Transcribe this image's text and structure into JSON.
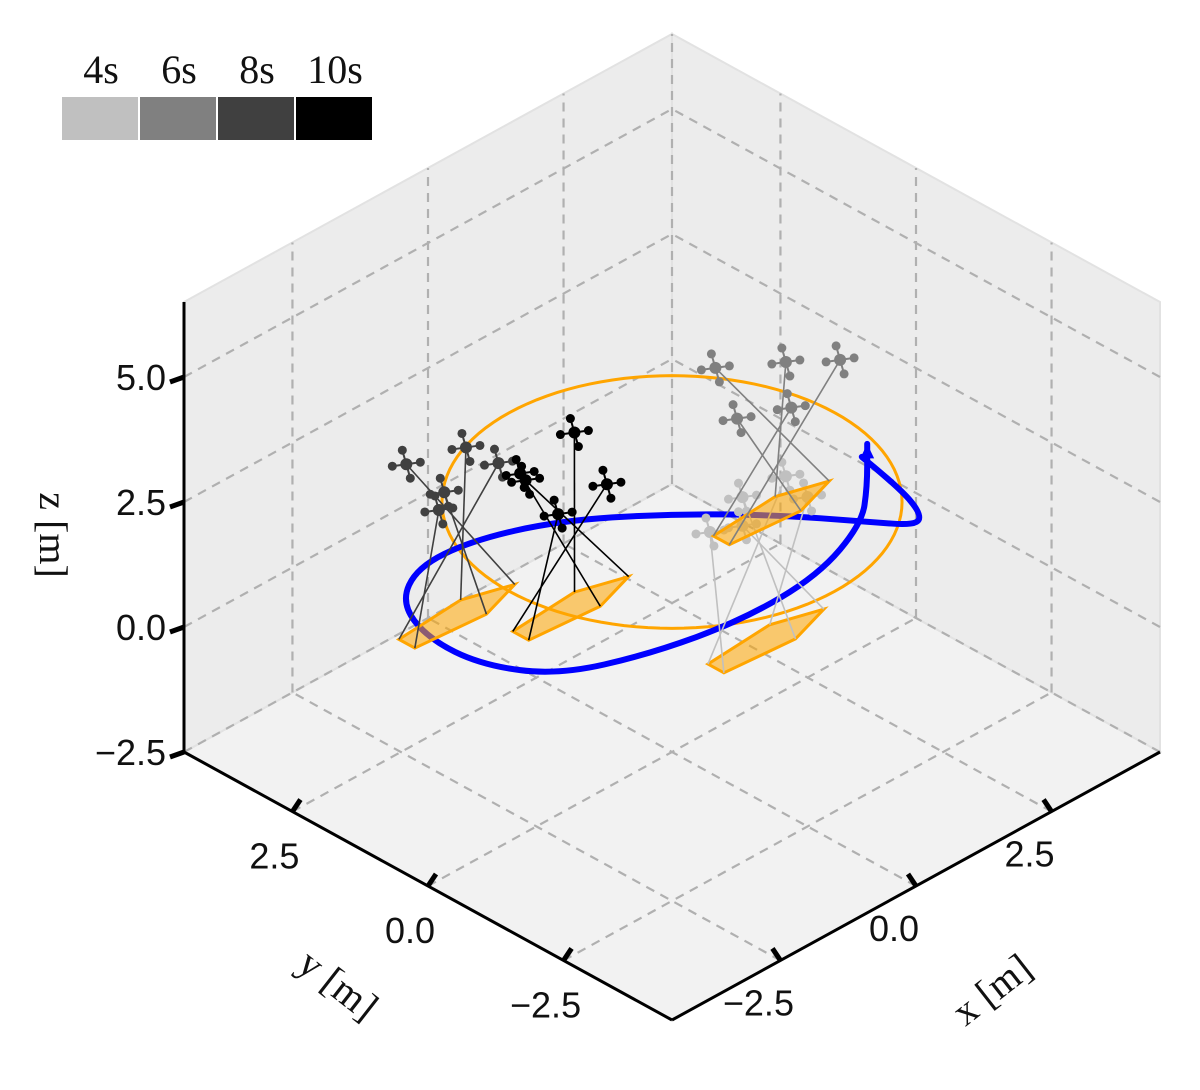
{
  "chart_data": {
    "type": "3d-trajectory",
    "xlabel": "x [m]",
    "ylabel": "y [m]",
    "zlabel": "z [m]",
    "xlim": [
      -4.5,
      4.5
    ],
    "ylim": [
      -4.5,
      4.5
    ],
    "zlim": [
      -2.5,
      6.5
    ],
    "xticks": [
      "−2.5",
      "0.0",
      "2.5"
    ],
    "yticks": [
      "2.5",
      "0.0",
      "−2.5"
    ],
    "zticks": [
      "−2.5",
      "0.0",
      "2.5",
      "5.0"
    ],
    "grid": true,
    "legend": {
      "placement": "top-left",
      "type": "colorbar",
      "entries": [
        {
          "label": "4s",
          "color": "#c0c0c0"
        },
        {
          "label": "6s",
          "color": "#808080"
        },
        {
          "label": "8s",
          "color": "#404040"
        },
        {
          "label": "10s",
          "color": "#000000"
        }
      ]
    },
    "series": [
      {
        "kind": "reference-circle",
        "color": "#ffa500",
        "center": [
          0,
          0,
          2.5
        ],
        "radius": 3
      },
      {
        "kind": "payload-trajectory",
        "color": "#0000ff",
        "points": [
          [
            1.5,
            -2.0,
            3.7
          ],
          [
            2.0,
            -2.2,
            2.9
          ],
          [
            2.6,
            -2.0,
            1.9
          ],
          [
            3.2,
            -1.3,
            0.9
          ],
          [
            3.4,
            -0.2,
            0.2
          ],
          [
            3.0,
            1.1,
            -0.2
          ],
          [
            2.1,
            2.2,
            -0.3
          ],
          [
            0.9,
            3.0,
            -0.2
          ],
          [
            -0.4,
            3.3,
            0.0
          ],
          [
            -1.6,
            3.1,
            0.3
          ],
          [
            -2.6,
            2.4,
            0.6
          ],
          [
            -3.2,
            1.3,
            0.9
          ],
          [
            -3.4,
            0.1,
            1.2
          ],
          [
            -3.2,
            -1.1,
            1.6
          ],
          [
            -2.5,
            -2.1,
            2.2
          ],
          [
            -1.5,
            -2.8,
            2.7
          ],
          [
            -0.3,
            -3.0,
            3.0
          ],
          [
            0.8,
            -2.7,
            3.2
          ],
          [
            1.3,
            -2.3,
            3.4
          ],
          [
            1.6,
            -2.0,
            3.9
          ]
        ]
      }
    ],
    "snapshots": [
      {
        "time": "4s",
        "center": [
          -1.5,
          -3.2,
          2.5
        ],
        "drones": [
          [
            -2.1,
            -3.4,
            5.3
          ],
          [
            -1.1,
            -3.6,
            5.4
          ],
          [
            -0.7,
            -2.8,
            5.1
          ],
          [
            -2.0,
            -2.7,
            4.7
          ],
          [
            -1.2,
            -2.5,
            4.8
          ]
        ]
      },
      {
        "time": "6s",
        "center": [
          2.8,
          1.0,
          0.0
        ],
        "drones": [
          [
            2.4,
            1.6,
            2.8
          ],
          [
            3.4,
            1.3,
            2.5
          ],
          [
            2.6,
            0.4,
            2.6
          ],
          [
            3.6,
            0.5,
            2.9
          ],
          [
            2.0,
            0.8,
            2.5
          ]
        ]
      },
      {
        "time": "8s",
        "center": [
          -1.5,
          2.5,
          -0.4
        ],
        "drones": [
          [
            -1.9,
            3.0,
            2.6
          ],
          [
            -0.9,
            2.9,
            2.4
          ],
          [
            -1.2,
            2.0,
            2.8
          ],
          [
            -2.2,
            2.1,
            2.4
          ],
          [
            -1.6,
            2.6,
            2.1
          ]
        ]
      },
      {
        "time": "10s",
        "center": [
          -2.5,
          -0.6,
          2.2
        ],
        "drones": [
          [
            -3.0,
            -0.3,
            4.9
          ],
          [
            -2.0,
            -0.2,
            5.2
          ],
          [
            -2.4,
            -1.2,
            5.0
          ],
          [
            -3.1,
            -1.0,
            4.7
          ],
          [
            -2.6,
            0.2,
            4.5
          ]
        ]
      }
    ]
  }
}
